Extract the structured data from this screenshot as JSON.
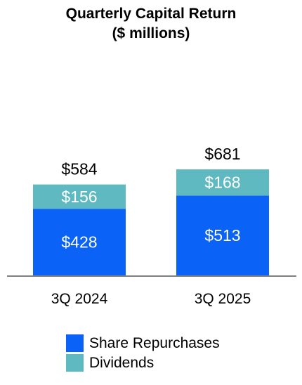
{
  "chart_data": {
    "type": "bar",
    "stacked": true,
    "title": "Quarterly Capital Return",
    "subtitle": "($ millions)",
    "categories": [
      "3Q 2024",
      "3Q 2025"
    ],
    "series": [
      {
        "name": "Share Repurchases",
        "values": [
          428,
          513
        ],
        "labels": [
          "$428",
          "$513"
        ],
        "color": "#0A63F6"
      },
      {
        "name": "Dividends",
        "values": [
          156,
          168
        ],
        "labels": [
          "$156",
          "$168"
        ],
        "color": "#5FB9C1"
      }
    ],
    "totals": [
      584,
      681
    ],
    "total_labels": [
      "$584",
      "$681"
    ],
    "ylim": [
      0,
      800
    ],
    "grid": false,
    "legend_position": "bottom"
  },
  "colors": {
    "axis": "#808080",
    "segment_label": "#ffffff",
    "text": "#000000"
  }
}
